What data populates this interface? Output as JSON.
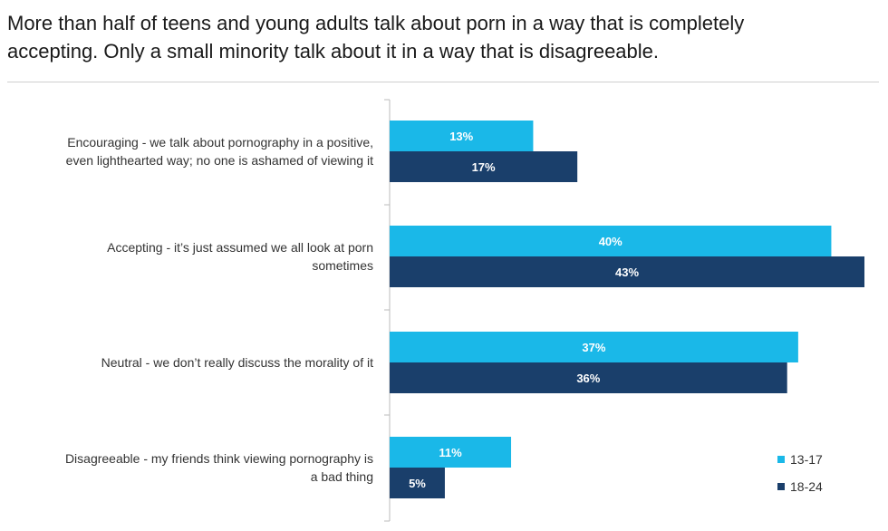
{
  "title_lines": [
    "More than half of teens and young adults talk about porn in a way that is completely",
    "accepting. Only a small minority talk about it in a way that is disagreeable."
  ],
  "colors": {
    "series_13_17": "#1ab8e8",
    "series_18_24": "#1a3f6b",
    "axis": "#bbbbbb"
  },
  "chart_data": {
    "type": "bar",
    "orientation": "horizontal",
    "categories": [
      [
        "Encouraging - we talk about pornography in a positive,",
        "even lighthearted way; no one is ashamed of viewing it"
      ],
      [
        "Accepting - it’s just assumed we all look at porn",
        "sometimes"
      ],
      [
        "Neutral - we don’t really discuss the morality of it"
      ],
      [
        "Disagreeable - my friends think viewing pornography is",
        "a bad thing"
      ]
    ],
    "series": [
      {
        "name": "13-17",
        "values": [
          13,
          40,
          37,
          11
        ],
        "labels": [
          "13%",
          "40%",
          "37%",
          "11%"
        ]
      },
      {
        "name": "18-24",
        "values": [
          17,
          43,
          36,
          5
        ],
        "labels": [
          "17%",
          "43%",
          "36%",
          "5%"
        ]
      }
    ],
    "xlim": [
      0,
      43
    ],
    "legend": "bottom-right",
    "grid": false
  }
}
